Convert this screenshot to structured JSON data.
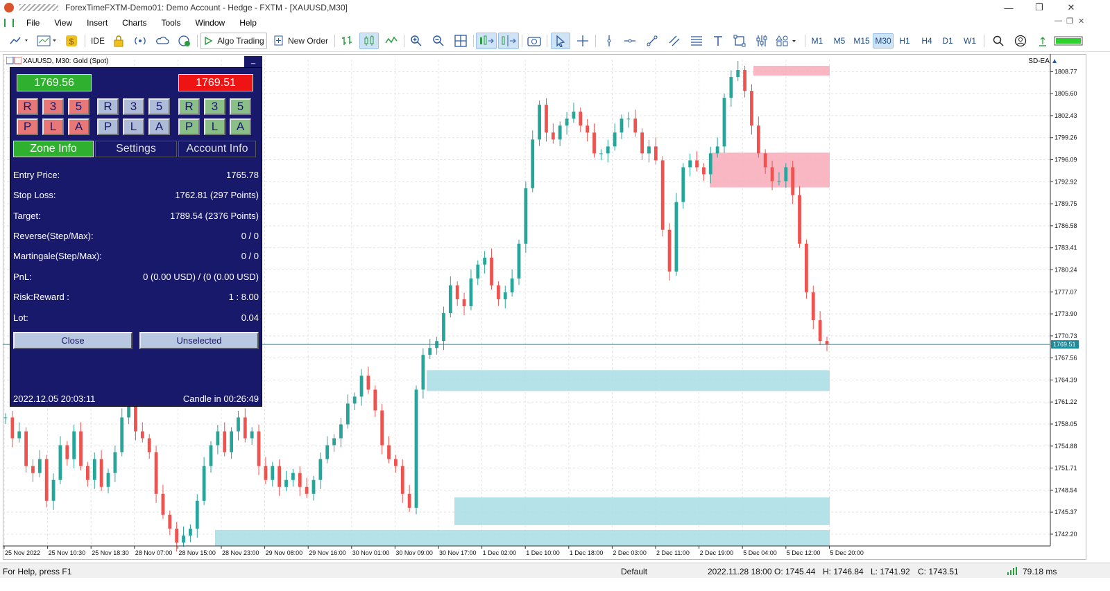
{
  "window": {
    "title": "ForexTimeFXTM-Demo01: Demo Account - Hedge - FXTM - [XAUUSD,M30]"
  },
  "menu": [
    "File",
    "View",
    "Insert",
    "Charts",
    "Tools",
    "Window",
    "Help"
  ],
  "toolbar": {
    "ide_label": "IDE",
    "algo_label": "Algo Trading",
    "new_order_label": "New Order"
  },
  "timeframes": [
    "M1",
    "M5",
    "M15",
    "M30",
    "H1",
    "H4",
    "D1",
    "W1"
  ],
  "active_timeframe": "M30",
  "chart_caption": "XAUUSD, M30:  Gold (Spot)",
  "ea_label": "SD-EA",
  "panel": {
    "bid": "1769.56",
    "ask": "1769.51",
    "buttons_top": [
      "R",
      "3",
      "5",
      "R",
      "3",
      "5",
      "R",
      "3",
      "5"
    ],
    "buttons_bottom": [
      "P",
      "L",
      "A",
      "P",
      "L",
      "A",
      "P",
      "L",
      "A"
    ],
    "tabs": [
      "Zone Info",
      "Settings",
      "Account Info"
    ],
    "rows": [
      {
        "label": "Entry Price:",
        "value": "1765.78"
      },
      {
        "label": "Stop Loss:",
        "value": "1762.81 (297 Points)"
      },
      {
        "label": "Target:",
        "value": "1789.54 (2376 Points)"
      },
      {
        "label": "Reverse(Step/Max):",
        "value": "0 / 0"
      },
      {
        "label": "Martingale(Step/Max):",
        "value": "0 / 0"
      },
      {
        "label": "PnL:",
        "value": "0 (0.00 USD) / (0 (0.00 USD)"
      },
      {
        "label": "Risk:Reward :",
        "value": "1 : 8.00"
      },
      {
        "label": "Lot:",
        "value": "0.04"
      }
    ],
    "close_label": "Close",
    "unselected_label": "Unselected",
    "datetime": "2022.12.05 20:03:11",
    "candle_timer": "Candle in 00:26:49",
    "minimize": "_"
  },
  "price_axis": [
    "1808.77",
    "1805.60",
    "1802.43",
    "1799.26",
    "1796.09",
    "1792.92",
    "1789.75",
    "1786.58",
    "1783.41",
    "1780.24",
    "1777.07",
    "1773.90",
    "1770.73",
    "1767.56",
    "1764.39",
    "1761.22",
    "1758.05",
    "1754.88",
    "1751.71",
    "1748.54",
    "1745.37",
    "1742.20"
  ],
  "current_price_tag": "1769.51",
  "time_axis": [
    "25 Nov 2022",
    "25 Nov 10:30",
    "25 Nov 18:30",
    "28 Nov 07:00",
    "28 Nov 15:00",
    "28 Nov 23:00",
    "29 Nov 08:00",
    "29 Nov 16:00",
    "30 Nov 01:00",
    "30 Nov 09:00",
    "30 Nov 17:00",
    "1 Dec 02:00",
    "1 Dec 10:00",
    "1 Dec 18:00",
    "2 Dec 03:00",
    "2 Dec 11:00",
    "2 Dec 19:00",
    "5 Dec 04:00",
    "5 Dec 12:00",
    "5 Dec 20:00"
  ],
  "status": {
    "help": "For Help, press F1",
    "profile": "Default",
    "time": "2022.11.28 18:00",
    "open": "O: 1745.44",
    "high": "H: 1746.84",
    "low": "L: 1741.92",
    "close": "C: 1743.51",
    "ping": "79.18 ms"
  },
  "colors": {
    "bull": "#26a69a",
    "bear": "#ef5350",
    "supply_zone": "#f7aab8",
    "demand_zone": "#a8dce4",
    "panel_bg": "#19196c"
  },
  "chart_data": {
    "type": "candlestick",
    "symbol": "XAUUSD",
    "timeframe": "M30",
    "y_range": [
      1740.5,
      1810.5
    ],
    "close_path": [
      1759,
      1756,
      1757,
      1752,
      1751,
      1753,
      1747,
      1750,
      1755,
      1753,
      1757,
      1752,
      1750,
      1753,
      1749,
      1751,
      1754,
      1759,
      1762,
      1757,
      1756,
      1754,
      1748,
      1745,
      1743,
      1741,
      1742,
      1743,
      1747,
      1752,
      1755,
      1757,
      1754,
      1757,
      1759,
      1756,
      1757,
      1752,
      1750,
      1752,
      1749,
      1750,
      1751,
      1749,
      1748,
      1750,
      1753,
      1755,
      1756,
      1758,
      1761,
      1762,
      1765,
      1763,
      1760,
      1755,
      1753,
      1752,
      1748,
      1746,
      1763,
      1768,
      1769,
      1770,
      1774,
      1778,
      1776,
      1775,
      1779,
      1781,
      1782,
      1778,
      1776,
      1777,
      1779,
      1784,
      1792,
      1799,
      1804,
      1800,
      1799,
      1801,
      1802,
      1803,
      1801,
      1800,
      1797,
      1797,
      1798,
      1800,
      1802,
      1802,
      1800,
      1797,
      1798,
      1796,
      1786,
      1780,
      1790,
      1795,
      1796,
      1795,
      1794,
      1797,
      1798,
      1805,
      1808,
      1809,
      1806,
      1801,
      1797,
      1795,
      1793,
      1793,
      1795,
      1791,
      1784,
      1777,
      1773,
      1770,
      1769.5
    ],
    "zones": [
      {
        "kind": "supply",
        "top": 1809.6,
        "bottom": 1808.2
      },
      {
        "kind": "supply",
        "top": 1797.1,
        "bottom": 1792.1
      },
      {
        "kind": "demand",
        "top": 1765.8,
        "bottom": 1762.8
      },
      {
        "kind": "demand",
        "top": 1747.5,
        "bottom": 1743.5
      },
      {
        "kind": "demand",
        "top": 1742.8,
        "bottom": 1740.5
      }
    ],
    "current_price": 1769.51
  }
}
